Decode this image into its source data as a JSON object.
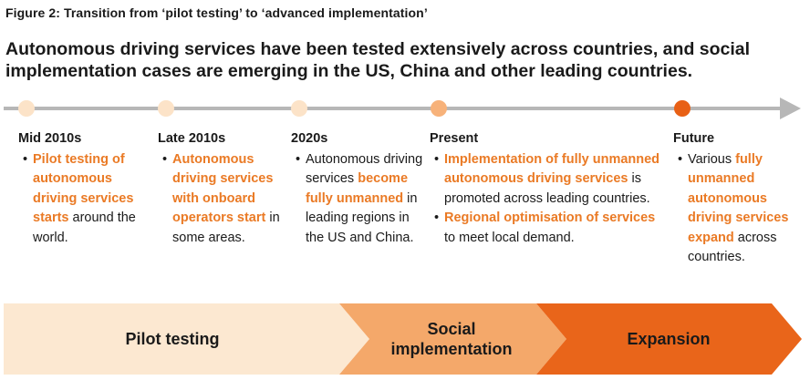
{
  "figure_caption": "Figure 2: Transition from ‘pilot testing’ to ‘advanced implementation’",
  "headline": "Autonomous driving services have been tested extensively across countries, and social implementation cases are emerging in the US, China and other leading countries.",
  "colors": {
    "accent": "#ea7a25",
    "arrow_grey": "#b7b7b7",
    "dot_light": "#fce3c8",
    "dot_mid": "#f7b27a",
    "dot_dark": "#e86015",
    "phase_1": "#fce8d1",
    "phase_2": "#f4a86a",
    "phase_3": "#e9651a"
  },
  "stages": [
    {
      "title": "Mid 2010s",
      "bullets": [
        [
          {
            "text": "Pilot testing of autonomous driving services starts",
            "hl": true
          },
          {
            "text": " around the world.",
            "hl": false
          }
        ]
      ]
    },
    {
      "title": "Late 2010s",
      "bullets": [
        [
          {
            "text": "Autonomous driving services with onboard operators start",
            "hl": true
          },
          {
            "text": " in some areas.",
            "hl": false
          }
        ]
      ]
    },
    {
      "title": "2020s",
      "bullets": [
        [
          {
            "text": "Autonomous driving services ",
            "hl": false
          },
          {
            "text": "become fully unmanned",
            "hl": true
          },
          {
            "text": " in leading regions in the US and China.",
            "hl": false
          }
        ]
      ]
    },
    {
      "title": "Present",
      "bullets": [
        [
          {
            "text": "Implementation of fully unmanned autonomous driving services",
            "hl": true
          },
          {
            "text": " is promoted across leading countries.",
            "hl": false
          }
        ],
        [
          {
            "text": "Regional optimisation of services",
            "hl": true
          },
          {
            "text": " to meet local demand.",
            "hl": false
          }
        ]
      ]
    },
    {
      "title": "Future",
      "bullets": [
        [
          {
            "text": "Various ",
            "hl": false
          },
          {
            "text": "fully unmanned autonomous driving services expand",
            "hl": true
          },
          {
            "text": " across countries.",
            "hl": false
          }
        ]
      ]
    }
  ],
  "phases": [
    {
      "label": "Pilot testing"
    },
    {
      "label": "Social implementation"
    },
    {
      "label": "Expansion"
    }
  ]
}
